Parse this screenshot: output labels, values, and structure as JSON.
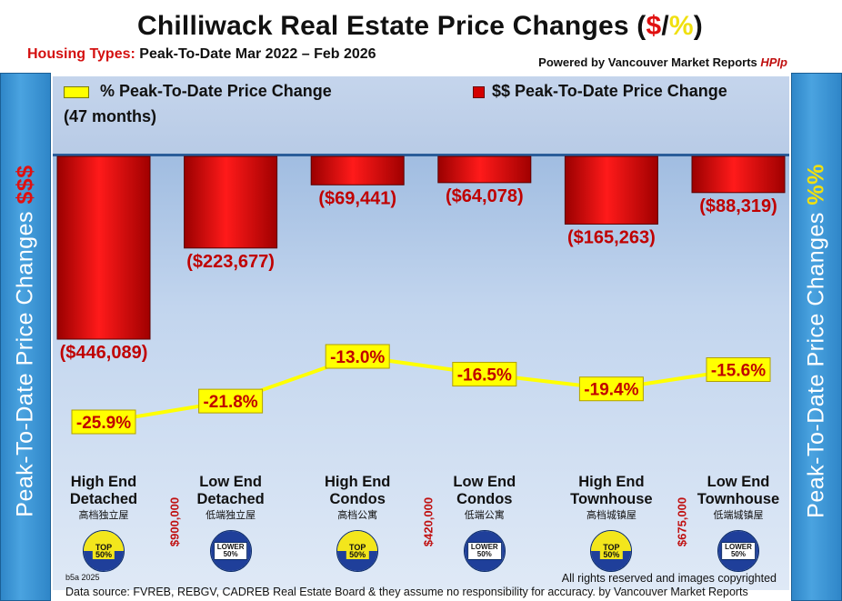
{
  "header": {
    "title_main": "Chilliwack Real Estate Price Changes (",
    "title_dollar": "$",
    "title_slash": "/",
    "title_pct": "%",
    "title_close": ")",
    "subtitle_label": "Housing Types:",
    "subtitle_text": " Peak-To-Date Mar 2022 – Feb 2026",
    "powered_text": "Powered by ",
    "powered_brand": "Vancouver Market Reports ",
    "powered_hpi": "HPIp"
  },
  "legend": {
    "pct_label_line1": "% Peak-To-Date Price Change",
    "pct_label_line2": "(47 months)",
    "dollar_label": "$$ Peak-To-Date Price Change"
  },
  "sidebar": {
    "left_text": "Peak-To-Date Price Changes ",
    "left_symbol": "$$$",
    "right_text": "Peak-To-Date  Price  Changes  ",
    "right_symbol": "%%"
  },
  "categories": [
    {
      "line1": "High End",
      "line2": "Detached",
      "cn": "高档独立屋",
      "badge": "TOP 50%",
      "badge_type": "top"
    },
    {
      "line1": "Low End",
      "line2": "Detached",
      "cn": "低端独立屋",
      "badge": "LOWER 50%",
      "badge_type": "lower"
    },
    {
      "line1": "High End",
      "line2": "Condos",
      "cn": "高档公寓",
      "badge": "TOP 50%",
      "badge_type": "top"
    },
    {
      "line1": "Low End",
      "line2": "Condos",
      "cn": "低端公寓",
      "badge": "LOWER 50%",
      "badge_type": "lower"
    },
    {
      "line1": "High End",
      "line2": "Townhouse",
      "cn": "高档城镇屋",
      "badge": "TOP 50%",
      "badge_type": "top"
    },
    {
      "line1": "Low End",
      "line2": "Townhouse",
      "cn": "低端城镇屋",
      "badge": "LOWER 50%",
      "badge_type": "lower"
    }
  ],
  "price_thresholds": [
    "$900,000",
    "$420,000",
    "$675,000"
  ],
  "footer": {
    "code": "b5a 2025",
    "rights": "All rights reserved and  images copyrighted",
    "source": "Data source: FVREB, REBGV, CADREB Real Estate Board & they assume no responsibility for accuracy. by Vancouver Market Reports"
  },
  "colors": {
    "bar": "#d40000",
    "line": "#ffff00",
    "dollar_label": "#c00000",
    "pct_label_bg": "#ffff00"
  },
  "chart_data": {
    "type": "bar",
    "title": "Chilliwack Real Estate Price Changes ($/%)",
    "categories": [
      "High End Detached",
      "Low End Detached",
      "High End Condos",
      "Low End Condos",
      "High End Townhouse",
      "Low End Townhouse"
    ],
    "series": [
      {
        "name": "$$ Peak-To-Date Price Change",
        "type": "bar",
        "values": [
          -446089,
          -223677,
          -69441,
          -64078,
          -165263,
          -88319
        ],
        "labels": [
          "($446,089)",
          "($223,677)",
          "($69,441)",
          "($64,078)",
          "($165,263)",
          "($88,319)"
        ]
      },
      {
        "name": "% Peak-To-Date Price Change",
        "type": "line",
        "values": [
          -25.9,
          -21.8,
          -13.0,
          -16.5,
          -19.4,
          -15.6
        ],
        "labels": [
          "-25.9%",
          "-21.8%",
          "-13.0%",
          "-16.5%",
          "-19.4%",
          "-15.6%"
        ]
      }
    ],
    "ylabel_left": "Peak-To-Date Price Changes $$$",
    "ylabel_right": "Peak-To-Date Price Changes %%",
    "ylim_dollar": [
      -446089,
      0
    ],
    "ylim_pct": [
      -25.9,
      -13.0
    ],
    "legend": "top"
  }
}
